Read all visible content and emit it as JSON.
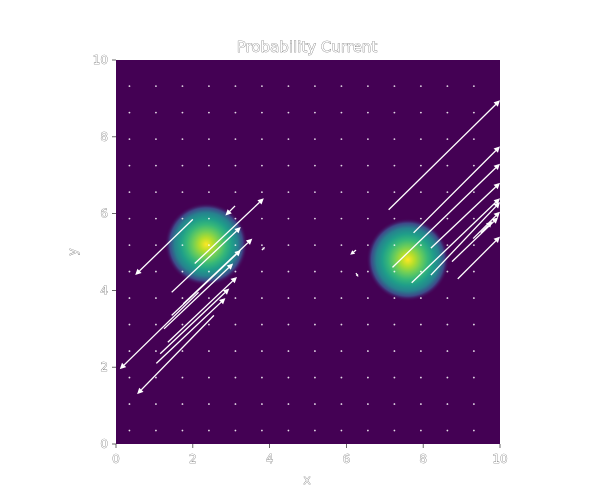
{
  "chart_data": {
    "type": "heatmap",
    "title": "Probability Current",
    "xlabel": "x",
    "ylabel": "y",
    "xlim": [
      0,
      10
    ],
    "ylim": [
      0,
      10
    ],
    "xticks": [
      "0",
      "2",
      "4",
      "6",
      "8",
      "10"
    ],
    "yticks": [
      "0",
      "2",
      "4",
      "6",
      "8",
      "10"
    ],
    "xtick_values": [
      0,
      2,
      4,
      6,
      8,
      10
    ],
    "ytick_values": [
      0,
      2,
      4,
      6,
      8,
      10
    ],
    "grid": false,
    "colormap": "viridis",
    "background_color": "#440154",
    "peaks": [
      {
        "x": 2.35,
        "y": 5.2,
        "sigma": 0.45
      },
      {
        "x": 7.6,
        "y": 4.8,
        "sigma": 0.45
      }
    ],
    "quiver_grid": {
      "x_start": 0.35,
      "y_start": 0.35,
      "step": 0.69,
      "count": 14
    },
    "vectors": [
      {
        "x": 2.05,
        "y": 4.7,
        "u": 1.8,
        "v": 1.7
      },
      {
        "x": 1.75,
        "y": 3.65,
        "u": 1.8,
        "v": 1.7
      },
      {
        "x": 1.45,
        "y": 3.95,
        "u": 1.8,
        "v": 1.7
      },
      {
        "x": 1.45,
        "y": 3.35,
        "u": 1.8,
        "v": 1.7
      },
      {
        "x": 1.35,
        "y": 2.65,
        "u": 1.8,
        "v": 1.7
      },
      {
        "x": 1.25,
        "y": 3.0,
        "u": 1.8,
        "v": 1.7
      },
      {
        "x": 1.15,
        "y": 2.35,
        "u": 1.8,
        "v": 1.7
      },
      {
        "x": 1.05,
        "y": 2.1,
        "u": 1.8,
        "v": 1.7
      },
      {
        "x": 2.55,
        "y": 3.35,
        "u": -2.0,
        "v": -2.05
      },
      {
        "x": 2.15,
        "y": 3.95,
        "u": -2.05,
        "v": -2.0
      },
      {
        "x": 2.0,
        "y": 5.85,
        "u": -1.5,
        "v": -1.45
      },
      {
        "x": 3.1,
        "y": 6.2,
        "u": -0.25,
        "v": -0.25
      },
      {
        "x": 3.8,
        "y": 5.05,
        "u": 0.08,
        "v": 0.08
      },
      {
        "x": 6.25,
        "y": 5.05,
        "u": -0.15,
        "v": -0.12
      },
      {
        "x": 6.25,
        "y": 4.45,
        "u": 0.06,
        "v": -0.1
      },
      {
        "x": 7.2,
        "y": 4.6,
        "u": 2.8,
        "v": 2.7
      },
      {
        "x": 7.7,
        "y": 4.2,
        "u": 2.3,
        "v": 2.2
      },
      {
        "x": 7.1,
        "y": 6.1,
        "u": 2.9,
        "v": 2.85
      },
      {
        "x": 8.2,
        "y": 4.4,
        "u": 1.8,
        "v": 1.9
      },
      {
        "x": 8.2,
        "y": 5.1,
        "u": 1.8,
        "v": 1.7
      },
      {
        "x": 7.75,
        "y": 5.5,
        "u": 2.25,
        "v": 2.25
      },
      {
        "x": 8.75,
        "y": 4.75,
        "u": 1.2,
        "v": 1.15
      },
      {
        "x": 9.3,
        "y": 5.35,
        "u": 0.7,
        "v": 0.7
      },
      {
        "x": 9.5,
        "y": 5.5,
        "u": 0.3,
        "v": 0.3
      },
      {
        "x": 8.9,
        "y": 4.3,
        "u": 1.1,
        "v": 1.1
      }
    ]
  }
}
